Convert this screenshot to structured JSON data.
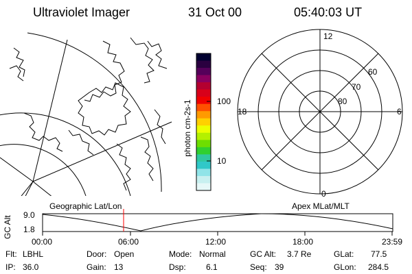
{
  "header": {
    "title": "Ultraviolet Imager",
    "date": "31 Oct 00",
    "time": "05:40:03 UT"
  },
  "colorbar": {
    "label": "photon cm-2s-1",
    "tick_100": "100",
    "tick_10": "10",
    "colors": [
      "#000030",
      "#2a0040",
      "#55005a",
      "#8a0060",
      "#b40030",
      "#d8001a",
      "#f00000",
      "#ff5000",
      "#ff9a00",
      "#ffd000",
      "#ecff00",
      "#b4f000",
      "#6ede00",
      "#30d030",
      "#30c8a0",
      "#30c8c8",
      "#90e4e8",
      "#c8f0f0",
      "#e6f8f8"
    ]
  },
  "polar_plot": {
    "label_top": "12",
    "label_left": "18",
    "label_right": "6",
    "label_bottom": "0",
    "ring_60": "60",
    "ring_70": "70",
    "ring_80": "80"
  },
  "mid_labels": {
    "left": "Geographic Lat/Lon",
    "right": "Apex MLat/MLT"
  },
  "altitude_strip": {
    "axis_label": "GC Alt",
    "y_top": "9.0",
    "y_bottom": "1.8",
    "x_ticks": [
      "00:00",
      "06:00",
      "12:00",
      "18:00",
      "23:59"
    ]
  },
  "status": {
    "flt_label": "Flt:",
    "flt_value": "LBHL",
    "door_label": "Door:",
    "door_value": "Open",
    "mode_label": "Mode:",
    "mode_value": "Normal",
    "gcalt_label": "GC Alt:",
    "gcalt_value": "3.7 Re",
    "glat_label": "GLat:",
    "glat_value": "77.5",
    "ip_label": "IP:",
    "ip_value": "36.0",
    "gain_label": "Gain:",
    "gain_value": "13",
    "dsp_label": "Dsp:",
    "dsp_value": "6.1",
    "seq_label": "Seq:",
    "seq_value": "39",
    "glon_label": "GLon:",
    "glon_value": "284.5"
  }
}
